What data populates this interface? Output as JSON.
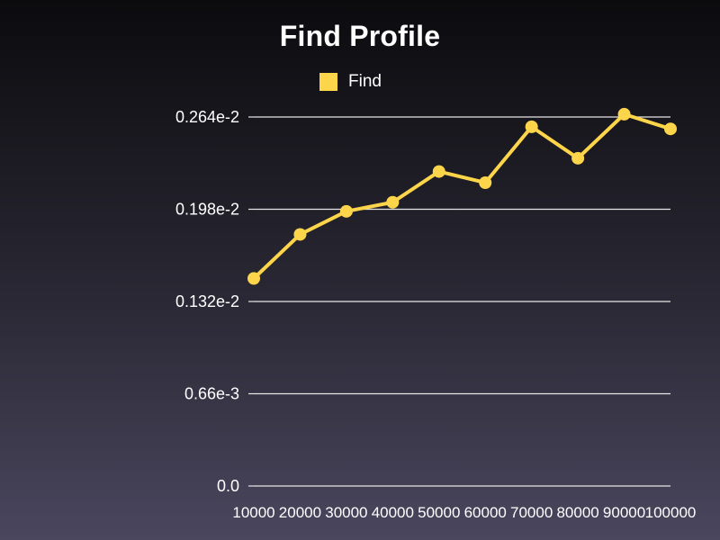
{
  "chart_data": {
    "type": "line",
    "title": "Find Profile",
    "xlabel": "",
    "ylabel": "",
    "x": [
      10000,
      20000,
      30000,
      40000,
      50000,
      60000,
      70000,
      80000,
      90000,
      100000
    ],
    "x_tick_labels": [
      "10000",
      "20000",
      "30000",
      "40000",
      "50000",
      "60000",
      "70000",
      "80000",
      "90000",
      "100000"
    ],
    "series": [
      {
        "name": "Find",
        "values": [
          0.001485,
          0.0018,
          0.001965,
          0.00203,
          0.00225,
          0.00217,
          0.00257,
          0.002345,
          0.00266,
          0.002555
        ]
      }
    ],
    "ylim": [
      0,
      0.00264
    ],
    "y_ticks": [
      0,
      0.00066,
      0.00132,
      0.00198,
      0.00264
    ],
    "y_tick_labels": [
      "0.0",
      "0.66e-3",
      "0.132e-2",
      "0.198e-2",
      "0.264e-2"
    ],
    "grid": true,
    "legend_position": "top-center"
  },
  "colors": {
    "series": "#fdd54a",
    "grid": "#e6e6e6",
    "text": "#ffffff"
  }
}
